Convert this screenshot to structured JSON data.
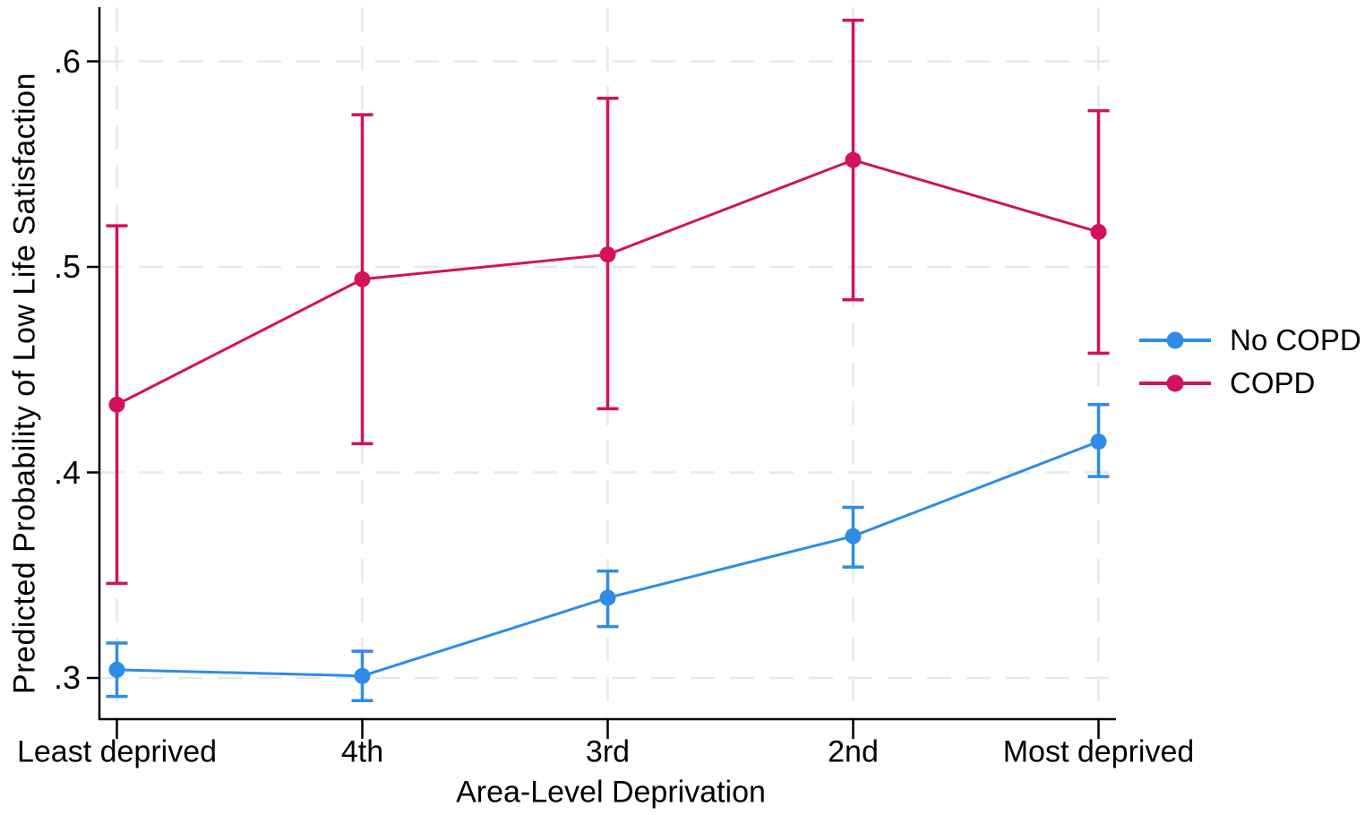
{
  "chart_data": {
    "type": "line",
    "title": "",
    "xlabel": "Area-Level Deprivation",
    "ylabel": "Predicted Probability of Low Life Satisfaction",
    "categories": [
      "Least deprived",
      "4th",
      "3rd",
      "2nd",
      "Most deprived"
    ],
    "y_ticks": [
      0.3,
      0.4,
      0.5,
      0.6
    ],
    "y_tick_labels": [
      ".3",
      ".4",
      ".5",
      ".6"
    ],
    "ylim": [
      0.28,
      0.627
    ],
    "grid": "dashed light-gray horizontal and vertical gridlines",
    "legend_position": "right-outside-middle",
    "marker": "filled circle with vertical CI error bars and caps",
    "series": [
      {
        "name": "No COPD",
        "color": "#2E8CE8",
        "values": [
          0.304,
          0.301,
          0.339,
          0.369,
          0.415
        ],
        "ci_lower": [
          0.291,
          0.289,
          0.325,
          0.354,
          0.398
        ],
        "ci_upper": [
          0.317,
          0.313,
          0.352,
          0.383,
          0.433
        ]
      },
      {
        "name": "COPD",
        "color": "#D3115C",
        "values": [
          0.433,
          0.494,
          0.506,
          0.552,
          0.517
        ],
        "ci_lower": [
          0.346,
          0.414,
          0.431,
          0.484,
          0.458
        ],
        "ci_upper": [
          0.52,
          0.574,
          0.582,
          0.62,
          0.576
        ]
      }
    ],
    "axis_color": "#000000",
    "grid_color": "#E8E8E8",
    "background_color": "#FFFFFF"
  }
}
